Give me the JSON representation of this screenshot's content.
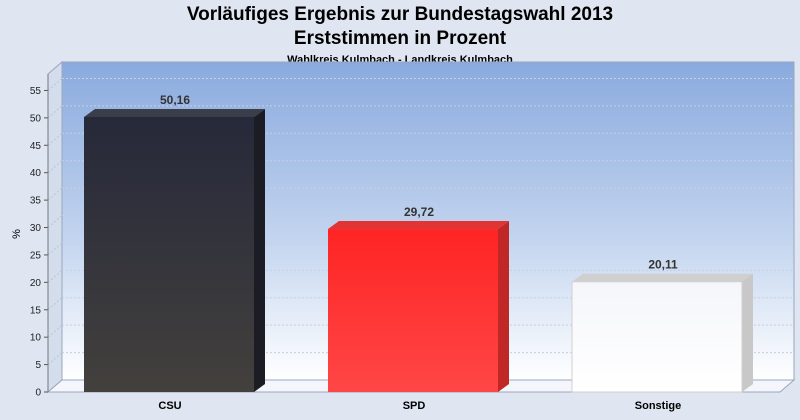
{
  "chart_data": {
    "type": "bar",
    "title": "Vorläufiges Ergebnis zur Bundestagswahl 2013",
    "subtitle": "Erststimmen in Prozent",
    "caption": "Wahlkreis Kulmbach - Landkreis Kulmbach",
    "ylabel": "%",
    "xlabel": "",
    "ylim": [
      0,
      58
    ],
    "yticks": [
      0,
      5,
      10,
      15,
      20,
      25,
      30,
      35,
      40,
      45,
      50,
      55
    ],
    "categories": [
      "CSU",
      "SPD",
      "Sonstige"
    ],
    "values": [
      50.16,
      29.72,
      20.11
    ],
    "value_labels": [
      "50,16",
      "29,72",
      "20,11"
    ],
    "colors": [
      "#2f3035",
      "#ff2f2f",
      "#ffffff"
    ],
    "grid": true,
    "legend": "none"
  }
}
